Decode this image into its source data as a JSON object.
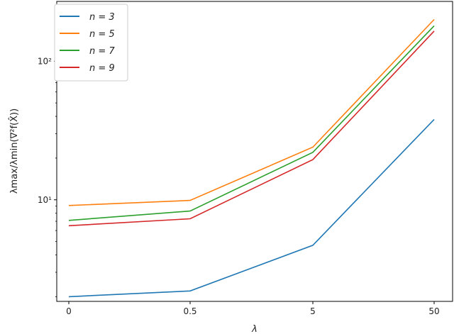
{
  "chart_data": {
    "type": "line",
    "x_tick_labels": [
      "0",
      "0.5",
      "5",
      "50"
    ],
    "xlabel": "λ",
    "ylabel": "λmax/λmin(∇²f(X̂))",
    "yscale": "log",
    "y_tick_labels": [
      "10¹",
      "10²"
    ],
    "ylim": [
      1.85,
      270
    ],
    "grid": false,
    "legend_position": "top-left",
    "series": [
      {
        "name": "n = 3",
        "color": "#1f77b4",
        "values": [
          2.0,
          2.2,
          4.7,
          38
        ]
      },
      {
        "name": "n = 5",
        "color": "#ff7f0e",
        "values": [
          9.1,
          9.9,
          24,
          200
        ]
      },
      {
        "name": "n = 7",
        "color": "#2ca02c",
        "values": [
          7.1,
          8.3,
          22,
          180
        ]
      },
      {
        "name": "n = 9",
        "color": "#d62728",
        "values": [
          6.5,
          7.3,
          19.5,
          165
        ]
      }
    ]
  }
}
